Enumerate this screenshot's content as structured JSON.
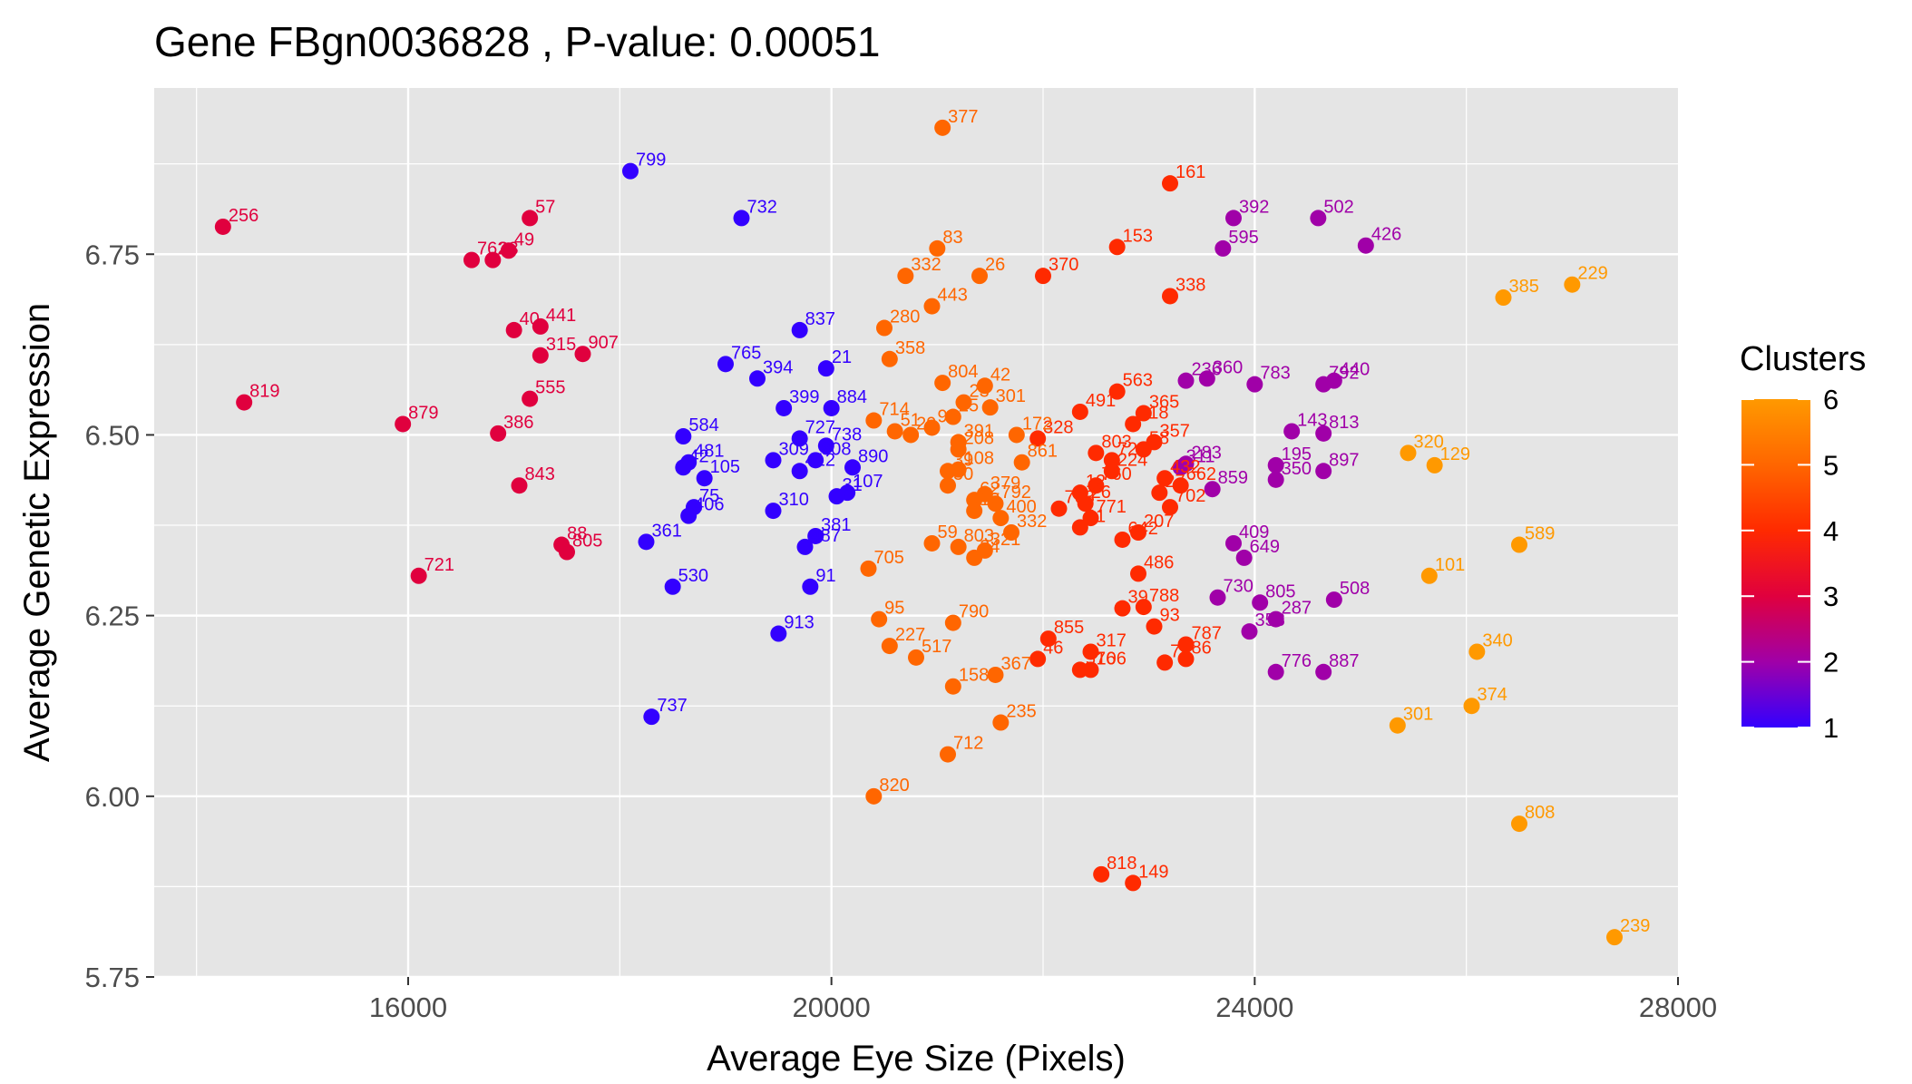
{
  "chart_data": {
    "type": "scatter",
    "title": "Gene FBgn0036828 , P-value: 0.00051",
    "xlabel": "Average Eye Size (Pixels)",
    "ylabel": "Average Genetic Expression",
    "xlim": [
      13600,
      28000
    ],
    "ylim": [
      5.75,
      6.98
    ],
    "xticks": [
      16000,
      20000,
      24000,
      28000
    ],
    "yticks": [
      5.75,
      6.0,
      6.25,
      6.5,
      6.75
    ],
    "xtick_labels": [
      "16000",
      "20000",
      "24000",
      "28000"
    ],
    "ytick_labels": [
      "5.75",
      "6.00",
      "6.25",
      "6.50",
      "6.75"
    ],
    "grid": true,
    "legend": {
      "title": "Clusters",
      "position": "right",
      "ticks": [
        1,
        2,
        3,
        4,
        5,
        6
      ],
      "tick_labels": [
        "1",
        "2",
        "3",
        "4",
        "5",
        "6"
      ]
    },
    "colors": {
      "panel_bg": "#e5e5e5",
      "grid": "#ffffff",
      "cluster_1": "#3300ff",
      "cluster_2": "#a000a8",
      "cluster_3": "#e0003e",
      "cluster_4": "#ff2a00",
      "cluster_5": "#ff6600",
      "cluster_6": "#ff9900"
    },
    "points": [
      {
        "label": "799",
        "x": 18100,
        "y": 6.865,
        "cluster": 1
      },
      {
        "label": "732",
        "x": 19150,
        "y": 6.8,
        "cluster": 1
      },
      {
        "label": "837",
        "x": 19700,
        "y": 6.645,
        "cluster": 1
      },
      {
        "label": "765",
        "x": 19000,
        "y": 6.598,
        "cluster": 1
      },
      {
        "label": "21",
        "x": 19950,
        "y": 6.592,
        "cluster": 1
      },
      {
        "label": "394",
        "x": 19300,
        "y": 6.578,
        "cluster": 1
      },
      {
        "label": "399",
        "x": 19550,
        "y": 6.537,
        "cluster": 1
      },
      {
        "label": "884",
        "x": 20000,
        "y": 6.537,
        "cluster": 1
      },
      {
        "label": "584",
        "x": 18600,
        "y": 6.498,
        "cluster": 1
      },
      {
        "label": "727",
        "x": 19700,
        "y": 6.495,
        "cluster": 1
      },
      {
        "label": "738",
        "x": 19950,
        "y": 6.485,
        "cluster": 1
      },
      {
        "label": "309",
        "x": 19450,
        "y": 6.465,
        "cluster": 1
      },
      {
        "label": "808",
        "x": 19850,
        "y": 6.465,
        "cluster": 1
      },
      {
        "label": "481",
        "x": 18650,
        "y": 6.462,
        "cluster": 1
      },
      {
        "label": "890",
        "x": 20200,
        "y": 6.455,
        "cluster": 1
      },
      {
        "label": "42",
        "x": 18600,
        "y": 6.455,
        "cluster": 1
      },
      {
        "label": "412",
        "x": 19700,
        "y": 6.45,
        "cluster": 1
      },
      {
        "label": "105",
        "x": 18800,
        "y": 6.44,
        "cluster": 1
      },
      {
        "label": "107",
        "x": 20150,
        "y": 6.42,
        "cluster": 1
      },
      {
        "label": "31",
        "x": 20050,
        "y": 6.415,
        "cluster": 1
      },
      {
        "label": "75",
        "x": 18700,
        "y": 6.4,
        "cluster": 1
      },
      {
        "label": "310",
        "x": 19450,
        "y": 6.395,
        "cluster": 1
      },
      {
        "label": "406",
        "x": 18650,
        "y": 6.388,
        "cluster": 1
      },
      {
        "label": "381",
        "x": 19850,
        "y": 6.36,
        "cluster": 1
      },
      {
        "label": "361",
        "x": 18250,
        "y": 6.352,
        "cluster": 1
      },
      {
        "label": "487",
        "x": 19750,
        "y": 6.345,
        "cluster": 1
      },
      {
        "label": "91",
        "x": 19800,
        "y": 6.29,
        "cluster": 1
      },
      {
        "label": "530",
        "x": 18500,
        "y": 6.29,
        "cluster": 1
      },
      {
        "label": "913",
        "x": 19500,
        "y": 6.225,
        "cluster": 1
      },
      {
        "label": "737",
        "x": 18300,
        "y": 6.11,
        "cluster": 1
      },
      {
        "label": "392",
        "x": 23800,
        "y": 6.8,
        "cluster": 2
      },
      {
        "label": "502",
        "x": 24600,
        "y": 6.8,
        "cluster": 2
      },
      {
        "label": "426",
        "x": 25050,
        "y": 6.762,
        "cluster": 2
      },
      {
        "label": "595",
        "x": 23700,
        "y": 6.758,
        "cluster": 2
      },
      {
        "label": "236",
        "x": 23350,
        "y": 6.575,
        "cluster": 2
      },
      {
        "label": "360",
        "x": 23550,
        "y": 6.578,
        "cluster": 2
      },
      {
        "label": "783",
        "x": 24000,
        "y": 6.57,
        "cluster": 2
      },
      {
        "label": "440",
        "x": 24750,
        "y": 6.575,
        "cluster": 2
      },
      {
        "label": "792",
        "x": 24650,
        "y": 6.57,
        "cluster": 2
      },
      {
        "label": "143",
        "x": 24350,
        "y": 6.505,
        "cluster": 2
      },
      {
        "label": "813",
        "x": 24650,
        "y": 6.502,
        "cluster": 2
      },
      {
        "label": "283",
        "x": 23350,
        "y": 6.46,
        "cluster": 2
      },
      {
        "label": "311",
        "x": 23300,
        "y": 6.455,
        "cluster": 2
      },
      {
        "label": "195",
        "x": 24200,
        "y": 6.458,
        "cluster": 2
      },
      {
        "label": "897",
        "x": 24650,
        "y": 6.45,
        "cluster": 2
      },
      {
        "label": "350",
        "x": 24200,
        "y": 6.438,
        "cluster": 2
      },
      {
        "label": "859",
        "x": 23600,
        "y": 6.425,
        "cluster": 2
      },
      {
        "label": "409",
        "x": 23800,
        "y": 6.35,
        "cluster": 2
      },
      {
        "label": "649",
        "x": 23900,
        "y": 6.33,
        "cluster": 2
      },
      {
        "label": "730",
        "x": 23650,
        "y": 6.275,
        "cluster": 2
      },
      {
        "label": "805",
        "x": 24050,
        "y": 6.268,
        "cluster": 2
      },
      {
        "label": "508",
        "x": 24750,
        "y": 6.272,
        "cluster": 2
      },
      {
        "label": "287",
        "x": 24200,
        "y": 6.245,
        "cluster": 2
      },
      {
        "label": "358",
        "x": 23950,
        "y": 6.228,
        "cluster": 2
      },
      {
        "label": "776",
        "x": 24200,
        "y": 6.172,
        "cluster": 2
      },
      {
        "label": "887",
        "x": 24650,
        "y": 6.172,
        "cluster": 2
      },
      {
        "label": "256",
        "x": 14250,
        "y": 6.788,
        "cluster": 3
      },
      {
        "label": "57",
        "x": 17150,
        "y": 6.8,
        "cluster": 3
      },
      {
        "label": "49",
        "x": 16950,
        "y": 6.755,
        "cluster": 3
      },
      {
        "label": "762",
        "x": 16600,
        "y": 6.742,
        "cluster": 3
      },
      {
        "label": "23",
        "x": 16800,
        "y": 6.742,
        "cluster": 3
      },
      {
        "label": "40",
        "x": 17000,
        "y": 6.645,
        "cluster": 3
      },
      {
        "label": "441",
        "x": 17250,
        "y": 6.65,
        "cluster": 3
      },
      {
        "label": "315",
        "x": 17250,
        "y": 6.61,
        "cluster": 3
      },
      {
        "label": "907",
        "x": 17650,
        "y": 6.612,
        "cluster": 3
      },
      {
        "label": "819",
        "x": 14450,
        "y": 6.545,
        "cluster": 3
      },
      {
        "label": "555",
        "x": 17150,
        "y": 6.55,
        "cluster": 3
      },
      {
        "label": "879",
        "x": 15950,
        "y": 6.515,
        "cluster": 3
      },
      {
        "label": "386",
        "x": 16850,
        "y": 6.502,
        "cluster": 3
      },
      {
        "label": "843",
        "x": 17050,
        "y": 6.43,
        "cluster": 3
      },
      {
        "label": "88",
        "x": 17450,
        "y": 6.348,
        "cluster": 3
      },
      {
        "label": "805",
        "x": 17500,
        "y": 6.338,
        "cluster": 3
      },
      {
        "label": "721",
        "x": 16100,
        "y": 6.305,
        "cluster": 3
      },
      {
        "label": "161",
        "x": 23200,
        "y": 6.848,
        "cluster": 4
      },
      {
        "label": "153",
        "x": 22700,
        "y": 6.76,
        "cluster": 4
      },
      {
        "label": "370",
        "x": 22000,
        "y": 6.72,
        "cluster": 4
      },
      {
        "label": "338",
        "x": 23200,
        "y": 6.692,
        "cluster": 4
      },
      {
        "label": "563",
        "x": 22700,
        "y": 6.56,
        "cluster": 4
      },
      {
        "label": "491",
        "x": 22350,
        "y": 6.532,
        "cluster": 4
      },
      {
        "label": "365",
        "x": 22950,
        "y": 6.53,
        "cluster": 4
      },
      {
        "label": "718",
        "x": 22850,
        "y": 6.515,
        "cluster": 4
      },
      {
        "label": "328",
        "x": 21950,
        "y": 6.495,
        "cluster": 4
      },
      {
        "label": "357",
        "x": 23050,
        "y": 6.49,
        "cluster": 4
      },
      {
        "label": "58",
        "x": 22950,
        "y": 6.48,
        "cluster": 4
      },
      {
        "label": "803",
        "x": 22500,
        "y": 6.475,
        "cluster": 4
      },
      {
        "label": "722",
        "x": 22650,
        "y": 6.465,
        "cluster": 4
      },
      {
        "label": "224",
        "x": 22650,
        "y": 6.45,
        "cluster": 4
      },
      {
        "label": "760",
        "x": 22500,
        "y": 6.43,
        "cluster": 4
      },
      {
        "label": "12",
        "x": 22350,
        "y": 6.42,
        "cluster": 4
      },
      {
        "label": "432",
        "x": 23150,
        "y": 6.44,
        "cluster": 4
      },
      {
        "label": "662",
        "x": 23300,
        "y": 6.43,
        "cluster": 4
      },
      {
        "label": "27",
        "x": 23100,
        "y": 6.42,
        "cluster": 4
      },
      {
        "label": "702",
        "x": 23200,
        "y": 6.4,
        "cluster": 4
      },
      {
        "label": "703",
        "x": 22150,
        "y": 6.398,
        "cluster": 4
      },
      {
        "label": "26",
        "x": 22400,
        "y": 6.405,
        "cluster": 4
      },
      {
        "label": "771",
        "x": 22450,
        "y": 6.385,
        "cluster": 4
      },
      {
        "label": "21",
        "x": 22350,
        "y": 6.372,
        "cluster": 4
      },
      {
        "label": "207",
        "x": 22900,
        "y": 6.365,
        "cluster": 4
      },
      {
        "label": "642",
        "x": 22750,
        "y": 6.355,
        "cluster": 4
      },
      {
        "label": "486",
        "x": 22900,
        "y": 6.308,
        "cluster": 4
      },
      {
        "label": "39",
        "x": 22750,
        "y": 6.26,
        "cluster": 4
      },
      {
        "label": "788",
        "x": 22950,
        "y": 6.262,
        "cluster": 4
      },
      {
        "label": "93",
        "x": 23050,
        "y": 6.235,
        "cluster": 4
      },
      {
        "label": "855",
        "x": 22050,
        "y": 6.218,
        "cluster": 4
      },
      {
        "label": "787",
        "x": 23350,
        "y": 6.21,
        "cluster": 4
      },
      {
        "label": "317",
        "x": 22450,
        "y": 6.2,
        "cluster": 4
      },
      {
        "label": "46",
        "x": 21950,
        "y": 6.19,
        "cluster": 4
      },
      {
        "label": "71",
        "x": 23150,
        "y": 6.185,
        "cluster": 4
      },
      {
        "label": "86",
        "x": 23350,
        "y": 6.19,
        "cluster": 4
      },
      {
        "label": "576",
        "x": 22350,
        "y": 6.175,
        "cluster": 4
      },
      {
        "label": "106",
        "x": 22450,
        "y": 6.175,
        "cluster": 4
      },
      {
        "label": "818",
        "x": 22550,
        "y": 5.892,
        "cluster": 4
      },
      {
        "label": "149",
        "x": 22850,
        "y": 5.88,
        "cluster": 4
      },
      {
        "label": "377",
        "x": 21050,
        "y": 6.925,
        "cluster": 5
      },
      {
        "label": "83",
        "x": 21000,
        "y": 6.758,
        "cluster": 5
      },
      {
        "label": "332",
        "x": 20700,
        "y": 6.72,
        "cluster": 5
      },
      {
        "label": "26",
        "x": 21400,
        "y": 6.72,
        "cluster": 5
      },
      {
        "label": "443",
        "x": 20950,
        "y": 6.678,
        "cluster": 5
      },
      {
        "label": "280",
        "x": 20500,
        "y": 6.648,
        "cluster": 5
      },
      {
        "label": "358",
        "x": 20550,
        "y": 6.605,
        "cluster": 5
      },
      {
        "label": "804",
        "x": 21050,
        "y": 6.572,
        "cluster": 5
      },
      {
        "label": "42",
        "x": 21450,
        "y": 6.568,
        "cluster": 5
      },
      {
        "label": "23",
        "x": 21250,
        "y": 6.545,
        "cluster": 5
      },
      {
        "label": "301",
        "x": 21500,
        "y": 6.538,
        "cluster": 5
      },
      {
        "label": "714",
        "x": 20400,
        "y": 6.52,
        "cluster": 5
      },
      {
        "label": "25",
        "x": 21150,
        "y": 6.525,
        "cluster": 5
      },
      {
        "label": "96",
        "x": 20950,
        "y": 6.51,
        "cluster": 5
      },
      {
        "label": "51",
        "x": 20600,
        "y": 6.505,
        "cluster": 5
      },
      {
        "label": "29",
        "x": 20750,
        "y": 6.5,
        "cluster": 5
      },
      {
        "label": "172",
        "x": 21750,
        "y": 6.5,
        "cluster": 5
      },
      {
        "label": "391",
        "x": 21200,
        "y": 6.49,
        "cluster": 5
      },
      {
        "label": "208",
        "x": 21200,
        "y": 6.48,
        "cluster": 5
      },
      {
        "label": "861",
        "x": 21800,
        "y": 6.462,
        "cluster": 5
      },
      {
        "label": "108",
        "x": 21200,
        "y": 6.452,
        "cluster": 5
      },
      {
        "label": "39",
        "x": 21100,
        "y": 6.45,
        "cluster": 5
      },
      {
        "label": "50",
        "x": 21100,
        "y": 6.43,
        "cluster": 5
      },
      {
        "label": "379",
        "x": 21450,
        "y": 6.418,
        "cluster": 5
      },
      {
        "label": "62",
        "x": 21350,
        "y": 6.41,
        "cluster": 5
      },
      {
        "label": "792",
        "x": 21550,
        "y": 6.405,
        "cluster": 5
      },
      {
        "label": "10",
        "x": 21350,
        "y": 6.395,
        "cluster": 5
      },
      {
        "label": "400",
        "x": 21600,
        "y": 6.385,
        "cluster": 5
      },
      {
        "label": "332",
        "x": 21700,
        "y": 6.365,
        "cluster": 5
      },
      {
        "label": "59",
        "x": 20950,
        "y": 6.35,
        "cluster": 5
      },
      {
        "label": "803",
        "x": 21200,
        "y": 6.345,
        "cluster": 5
      },
      {
        "label": "321",
        "x": 21450,
        "y": 6.34,
        "cluster": 5
      },
      {
        "label": "24",
        "x": 21350,
        "y": 6.33,
        "cluster": 5
      },
      {
        "label": "705",
        "x": 20350,
        "y": 6.315,
        "cluster": 5
      },
      {
        "label": "95",
        "x": 20450,
        "y": 6.245,
        "cluster": 5
      },
      {
        "label": "790",
        "x": 21150,
        "y": 6.24,
        "cluster": 5
      },
      {
        "label": "227",
        "x": 20550,
        "y": 6.208,
        "cluster": 5
      },
      {
        "label": "517",
        "x": 20800,
        "y": 6.192,
        "cluster": 5
      },
      {
        "label": "367",
        "x": 21550,
        "y": 6.168,
        "cluster": 5
      },
      {
        "label": "158",
        "x": 21150,
        "y": 6.152,
        "cluster": 5
      },
      {
        "label": "235",
        "x": 21600,
        "y": 6.102,
        "cluster": 5
      },
      {
        "label": "712",
        "x": 21100,
        "y": 6.058,
        "cluster": 5
      },
      {
        "label": "820",
        "x": 20400,
        "y": 6.0,
        "cluster": 5
      },
      {
        "label": "229",
        "x": 27000,
        "y": 6.708,
        "cluster": 6
      },
      {
        "label": "385",
        "x": 26350,
        "y": 6.69,
        "cluster": 6
      },
      {
        "label": "320",
        "x": 25450,
        "y": 6.475,
        "cluster": 6
      },
      {
        "label": "129",
        "x": 25700,
        "y": 6.458,
        "cluster": 6
      },
      {
        "label": "589",
        "x": 26500,
        "y": 6.348,
        "cluster": 6
      },
      {
        "label": "101",
        "x": 25650,
        "y": 6.305,
        "cluster": 6
      },
      {
        "label": "340",
        "x": 26100,
        "y": 6.2,
        "cluster": 6
      },
      {
        "label": "374",
        "x": 26050,
        "y": 6.125,
        "cluster": 6
      },
      {
        "label": "301",
        "x": 25350,
        "y": 6.098,
        "cluster": 6
      },
      {
        "label": "808",
        "x": 26500,
        "y": 5.962,
        "cluster": 6
      },
      {
        "label": "239",
        "x": 27400,
        "y": 5.805,
        "cluster": 6
      }
    ]
  }
}
